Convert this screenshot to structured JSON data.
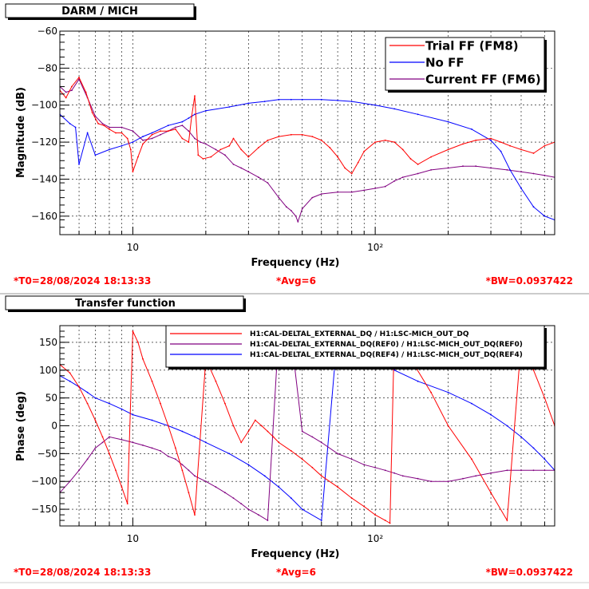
{
  "panels": [
    {
      "title": "DARM / MICH",
      "footer": {
        "left": "*T0=28/08/2024 18:13:33",
        "center": "*Avg=6",
        "right": "*BW=0.0937422"
      }
    },
    {
      "title": "Transfer function",
      "footer": {
        "left": "*T0=28/08/2024 18:13:33",
        "center": "*Avg=6",
        "right": "*BW=0.0937422"
      }
    }
  ],
  "chart_data": [
    {
      "type": "line",
      "title": "DARM / MICH",
      "xlabel": "Frequency (Hz)",
      "ylabel": "Magnitude (dB)",
      "xscale": "log",
      "xlim": [
        5,
        550
      ],
      "ylim": [
        -170,
        -60
      ],
      "xticklabels": [
        {
          "value": 10,
          "label": "10"
        },
        {
          "value": 100,
          "label": "10²"
        }
      ],
      "yticks": [
        -160,
        -140,
        -120,
        -100,
        -80,
        -60
      ],
      "yticklabels": [
        "−160",
        "−140",
        "−120",
        "−100",
        "−80",
        "−60"
      ],
      "grid": true,
      "legend_position": "top-right",
      "series": [
        {
          "name": "Trial FF (FM8)",
          "color": "#ff0000",
          "x": [
            5,
            5.3,
            5.6,
            6,
            6.4,
            6.8,
            7.2,
            7.6,
            8,
            8.5,
            9,
            9.5,
            9.8,
            10,
            10.5,
            11,
            12,
            13,
            14,
            15,
            16,
            17,
            17.5,
            18,
            18.6,
            19.5,
            21,
            23,
            25,
            26,
            28,
            30,
            33,
            36,
            40,
            45,
            50,
            55,
            60,
            65,
            70,
            75,
            80,
            85,
            90,
            100,
            110,
            120,
            130,
            140,
            150,
            170,
            200,
            230,
            260,
            300,
            330,
            360,
            400,
            450,
            500,
            550
          ],
          "y": [
            -92,
            -96,
            -90,
            -85,
            -93,
            -104,
            -110,
            -111,
            -113,
            -115,
            -115,
            -118,
            -124,
            -136,
            -128,
            -121,
            -116,
            -114,
            -114,
            -113,
            -118,
            -120,
            -106,
            -95,
            -127,
            -129,
            -128,
            -124,
            -122,
            -118,
            -124,
            -128,
            -123,
            -119,
            -117,
            -116,
            -116,
            -117,
            -119,
            -123,
            -128,
            -134,
            -137,
            -131,
            -125,
            -120,
            -119,
            -120,
            -124,
            -129,
            -132,
            -128,
            -124,
            -121,
            -119,
            -118,
            -120,
            -122,
            -124,
            -126,
            -122,
            -120
          ]
        },
        {
          "name": "No FF",
          "color": "#0000ff",
          "x": [
            5,
            5.5,
            5.8,
            6,
            6.5,
            7,
            8,
            9,
            10,
            11,
            12,
            14,
            16,
            17,
            17.5,
            18,
            20,
            25,
            30,
            35,
            40,
            45,
            50,
            60,
            70,
            80,
            100,
            120,
            150,
            200,
            250,
            300,
            330,
            360,
            400,
            450,
            500,
            550
          ],
          "y": [
            -105,
            -110,
            -112,
            -132,
            -115,
            -127,
            -124,
            -122,
            -120,
            -117,
            -115,
            -111,
            -109,
            -107,
            -106,
            -105,
            -103,
            -101,
            -99,
            -98,
            -97,
            -97,
            -97,
            -97,
            -97.5,
            -98,
            -100,
            -102,
            -105,
            -109,
            -113,
            -119,
            -125,
            -135,
            -145,
            -155,
            -160,
            -162
          ]
        },
        {
          "name": "Current FF (FM6)",
          "color": "#800080",
          "x": [
            5,
            5.3,
            5.6,
            6,
            6.5,
            7,
            7.5,
            8,
            9,
            10,
            11,
            12,
            13,
            14,
            15,
            16,
            17,
            18,
            19,
            20,
            22,
            24,
            26,
            28,
            30,
            33,
            36,
            40,
            43,
            45,
            47,
            48,
            50,
            55,
            60,
            70,
            80,
            90,
            100,
            110,
            120,
            130,
            150,
            170,
            200,
            230,
            260,
            300,
            350,
            400,
            450,
            500,
            550
          ],
          "y": [
            -90,
            -93,
            -92,
            -86,
            -96,
            -106,
            -110,
            -112,
            -112,
            -114,
            -119,
            -118,
            -116,
            -114,
            -112,
            -111,
            -114,
            -118,
            -120,
            -121,
            -124,
            -127,
            -132,
            -134,
            -136,
            -139,
            -142,
            -150,
            -155,
            -157,
            -160,
            -163,
            -156,
            -150,
            -148,
            -147,
            -147,
            -146,
            -145,
            -144,
            -141,
            -139,
            -137,
            -135,
            -134,
            -133,
            -133,
            -134,
            -135,
            -136,
            -137,
            -138,
            -139
          ]
        }
      ]
    },
    {
      "type": "line",
      "title": "Transfer function",
      "xlabel": "Frequency (Hz)",
      "ylabel": "Phase (deg)",
      "xscale": "log",
      "xlim": [
        5,
        550
      ],
      "ylim": [
        -180,
        180
      ],
      "xticklabels": [
        {
          "value": 10,
          "label": "10"
        },
        {
          "value": 100,
          "label": "10²"
        }
      ],
      "yticks": [
        -150,
        -100,
        -50,
        0,
        50,
        100,
        150
      ],
      "yticklabels": [
        "−150",
        "−100",
        "−50",
        "0",
        "50",
        "100",
        "150"
      ],
      "grid": true,
      "legend_position": "top-right",
      "series": [
        {
          "name": "H1:CAL-DELTAL_EXTERNAL_DQ / H1:LSC-MICH_OUT_DQ",
          "color": "#ff0000",
          "x": [
            5,
            5.5,
            6,
            6.5,
            7,
            7.5,
            8,
            8.5,
            9,
            9.5,
            10,
            10.5,
            11,
            12,
            13,
            14,
            15,
            16,
            17,
            18,
            20,
            22,
            24,
            26,
            28,
            30,
            32,
            34,
            36,
            38,
            40,
            45,
            50,
            55,
            60,
            70,
            80,
            90,
            100,
            110,
            115,
            120,
            140,
            170,
            200,
            250,
            300,
            350,
            400,
            450,
            500,
            550
          ],
          "y": [
            110,
            95,
            70,
            40,
            10,
            -20,
            -50,
            -80,
            -110,
            -140,
            170,
            150,
            120,
            80,
            40,
            0,
            -40,
            -80,
            -120,
            -160,
            120,
            80,
            40,
            0,
            -30,
            -10,
            10,
            0,
            -10,
            -20,
            -30,
            -45,
            -60,
            -75,
            -90,
            -110,
            -130,
            -145,
            -160,
            -170,
            -175,
            170,
            120,
            60,
            0,
            -60,
            -120,
            -170,
            150,
            100,
            50,
            0
          ]
        },
        {
          "name": "H1:CAL-DELTAL_EXTERNAL_DQ(REF0) / H1:LSC-MICH_OUT_DQ(REF0)",
          "color": "#800080",
          "x": [
            5,
            5.5,
            6,
            6.5,
            7,
            7.5,
            8,
            9,
            10,
            11,
            12,
            13,
            14,
            15,
            16,
            17,
            18,
            20,
            22,
            24,
            26,
            28,
            30,
            33,
            36,
            40,
            45,
            50,
            55,
            60,
            70,
            80,
            90,
            100,
            110,
            120,
            130,
            150,
            170,
            200,
            230,
            260,
            300,
            350,
            400,
            450,
            500,
            550
          ],
          "y": [
            -120,
            -100,
            -80,
            -60,
            -40,
            -30,
            -20,
            -25,
            -30,
            -35,
            -40,
            -45,
            -55,
            -60,
            -70,
            -80,
            -90,
            -100,
            -110,
            -120,
            -130,
            -140,
            -150,
            -160,
            -170,
            170,
            160,
            -10,
            -20,
            -30,
            -50,
            -60,
            -70,
            -75,
            -80,
            -85,
            -90,
            -95,
            -100,
            -100,
            -95,
            -90,
            -85,
            -80,
            -80,
            -80,
            -80,
            -80
          ]
        },
        {
          "name": "H1:CAL-DELTAL_EXTERNAL_DQ(REF4) / H1:LSC-MICH_OUT_DQ(REF4)",
          "color": "#0000ff",
          "x": [
            5,
            5.5,
            6,
            6.5,
            7,
            8,
            9,
            10,
            12,
            14,
            16,
            18,
            20,
            25,
            30,
            35,
            40,
            45,
            50,
            60,
            70,
            80,
            100,
            120,
            150,
            200,
            250,
            300,
            350,
            400,
            450,
            500,
            550
          ],
          "y": [
            90,
            80,
            70,
            60,
            50,
            40,
            30,
            20,
            10,
            0,
            -10,
            -20,
            -30,
            -50,
            -70,
            -90,
            -110,
            -130,
            -150,
            -170,
            170,
            150,
            120,
            100,
            80,
            60,
            40,
            20,
            0,
            -20,
            -40,
            -60,
            -80
          ]
        }
      ]
    }
  ]
}
